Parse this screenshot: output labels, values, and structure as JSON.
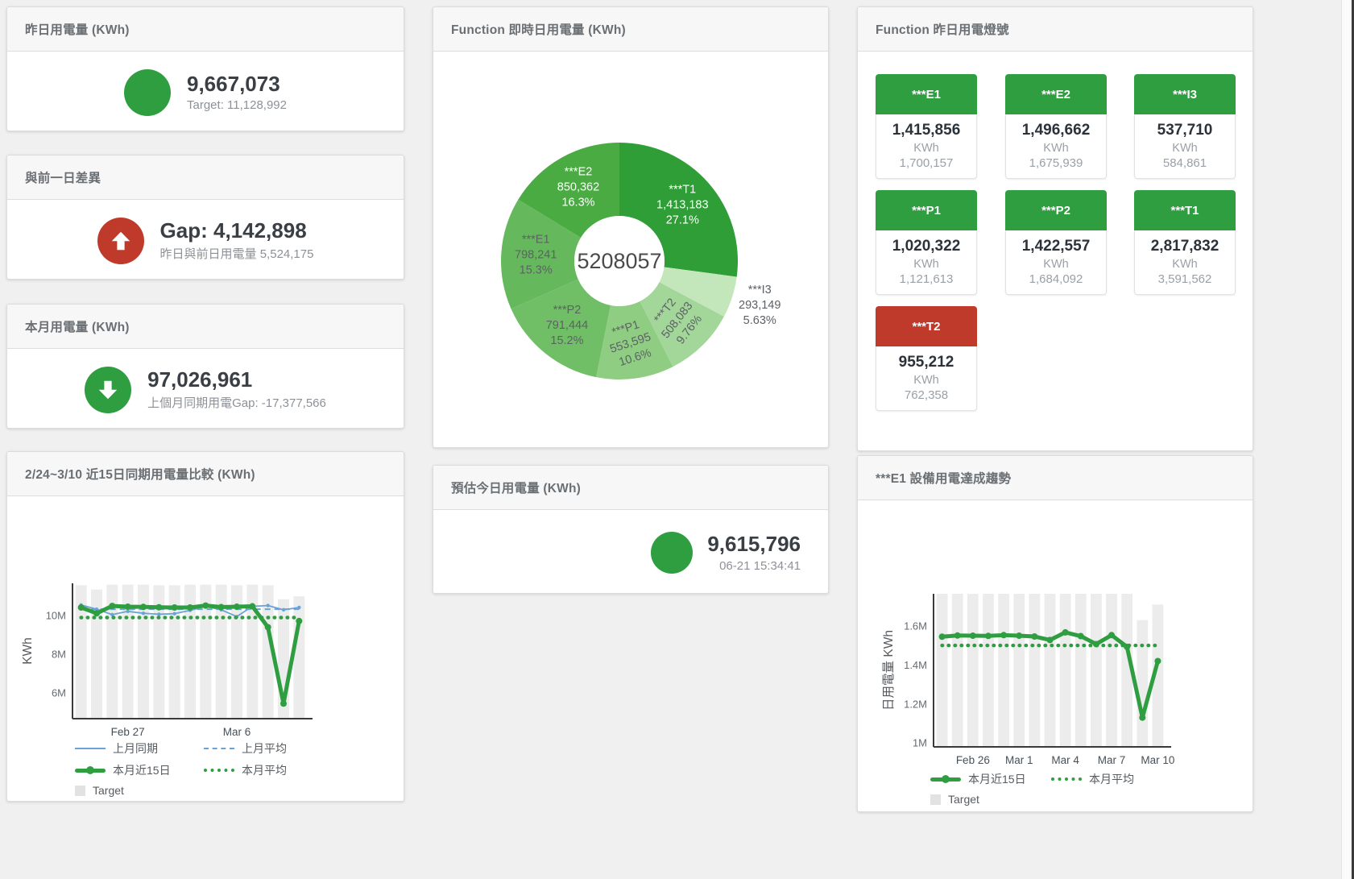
{
  "colors": {
    "green": "#2f9e41",
    "red": "#c03a2b",
    "blue": "#6ba3d6",
    "bar_gray": "#ececec",
    "target_swatch": "#e2e2e2"
  },
  "panels": {
    "yesterday": {
      "title": "昨日用電量 (KWh)",
      "value": "9,667,073",
      "subtitle": "Target: 11,128,992",
      "indicator": "circle",
      "indicator_color": "#2f9e41"
    },
    "day_gap": {
      "title": "與前一日差異",
      "value": "Gap: 4,142,898",
      "subtitle": "昨日與前日用電量 5,524,175",
      "indicator": "arrow-up",
      "indicator_color": "#c03a2b"
    },
    "month": {
      "title": "本月用電量 (KWh)",
      "value": "97,026,961",
      "subtitle": "上個月同期用電Gap: -17,377,566",
      "indicator": "arrow-down",
      "indicator_color": "#2f9e41"
    },
    "forecast": {
      "title": "預估今日用電量 (KWh)",
      "value": "9,615,796",
      "subtitle": "06-21 15:34:41",
      "indicator": "circle",
      "indicator_color": "#2f9e41"
    },
    "realtime_donut": {
      "title": "Function 即時日用電量 (KWh)"
    },
    "compare": {
      "title": "2/24~3/10 近15日同期用電量比較 (KWh)"
    },
    "lights": {
      "title": "Function 昨日用電燈號",
      "tiles": [
        {
          "name": "***E1",
          "value": "1,415,856",
          "unit": "KWh",
          "target": "1,700,157",
          "status_color": "#2f9e41"
        },
        {
          "name": "***E2",
          "value": "1,496,662",
          "unit": "KWh",
          "target": "1,675,939",
          "status_color": "#2f9e41"
        },
        {
          "name": "***I3",
          "value": "537,710",
          "unit": "KWh",
          "target": "584,861",
          "status_color": "#2f9e41"
        },
        {
          "name": "***P1",
          "value": "1,020,322",
          "unit": "KWh",
          "target": "1,121,613",
          "status_color": "#2f9e41"
        },
        {
          "name": "***P2",
          "value": "1,422,557",
          "unit": "KWh",
          "target": "1,684,092",
          "status_color": "#2f9e41"
        },
        {
          "name": "***T1",
          "value": "2,817,832",
          "unit": "KWh",
          "target": "3,591,562",
          "status_color": "#2f9e41"
        },
        {
          "name": "***T2",
          "value": "955,212",
          "unit": "KWh",
          "target": "762,358",
          "status_color": "#c03a2b"
        }
      ]
    },
    "e1_trend": {
      "title": "***E1 設備用電達成趨勢"
    }
  },
  "chart_data": [
    {
      "id": "realtime_donut",
      "type": "pie",
      "title": "Function 即時日用電量 (KWh)",
      "center_total": "5208057",
      "slices": [
        {
          "name": "***T1",
          "value": 1413183,
          "value_label": "1,413,183",
          "pct": 27.1,
          "pct_label": "27.1%",
          "color": "#2f9e36",
          "text_color": "#ffffff",
          "label": "inside",
          "label_rotate": 0
        },
        {
          "name": "***I3",
          "value": 293149,
          "value_label": "293,149",
          "pct": 5.63,
          "pct_label": "5.63%",
          "color": "#c4e6bb",
          "text_color": "#5d6166",
          "label": "outside",
          "label_rotate": 0
        },
        {
          "name": "***T2",
          "value": 508083,
          "value_label": "508,083",
          "pct": 9.76,
          "pct_label": "9.76%",
          "color": "#a3d699",
          "text_color": "#5d6166",
          "label": "inside",
          "label_rotate": -52
        },
        {
          "name": "***P1",
          "value": 553595,
          "value_label": "553,595",
          "pct": 10.6,
          "pct_label": "10.6%",
          "color": "#8ecd82",
          "text_color": "#5d6166",
          "label": "inside",
          "label_rotate": -18
        },
        {
          "name": "***P2",
          "value": 791444,
          "value_label": "791,444",
          "pct": 15.2,
          "pct_label": "15.2%",
          "color": "#70bf66",
          "text_color": "#5d6166",
          "label": "inside",
          "label_rotate": 0
        },
        {
          "name": "***E1",
          "value": 798241,
          "value_label": "798,241",
          "pct": 15.3,
          "pct_label": "15.3%",
          "color": "#65b95c",
          "text_color": "#5d6166",
          "label": "inside",
          "label_rotate": 0
        },
        {
          "name": "***E2",
          "value": 850362,
          "value_label": "850,362",
          "pct": 16.3,
          "pct_label": "16.3%",
          "color": "#4aab43",
          "text_color": "#ffffff",
          "label": "inside",
          "label_rotate": 0
        }
      ]
    },
    {
      "id": "compare",
      "type": "line",
      "title": "2/24~3/10 近15日同期用電量比較 (KWh)",
      "categories": [
        "Feb 24",
        "Feb 25",
        "Feb 26",
        "Feb 27",
        "Feb 28",
        "Mar 1",
        "Mar 2",
        "Mar 3",
        "Mar 4",
        "Mar 5",
        "Mar 6",
        "Mar 7",
        "Mar 8",
        "Mar 9",
        "Mar 10"
      ],
      "xlabel": "",
      "ylabel": "KWh",
      "ylim": [
        4.67,
        11.67
      ],
      "yticks": [
        {
          "v": 6,
          "label": "6M"
        },
        {
          "v": 8,
          "label": "8M"
        },
        {
          "v": 10,
          "label": "10M"
        }
      ],
      "xticks": [
        {
          "i": 3,
          "label": "Feb 27"
        },
        {
          "i": 10,
          "label": "Mar 6"
        }
      ],
      "grid": false,
      "legend_position": "bottom-left",
      "series": [
        {
          "name": "Target",
          "type": "bar",
          "color": "#ececec",
          "values": [
            11.57,
            11.35,
            11.6,
            11.6,
            11.6,
            11.57,
            11.57,
            11.6,
            11.6,
            11.6,
            11.57,
            11.6,
            11.57,
            10.85,
            11.0
          ]
        },
        {
          "name": "上月同期",
          "type": "line",
          "style": "solid",
          "width": 1.8,
          "marker": 2.2,
          "color": "#6ba3d6",
          "values": [
            10.55,
            10.33,
            10.05,
            10.22,
            10.12,
            10.07,
            10.1,
            10.27,
            10.48,
            10.3,
            9.95,
            10.48,
            10.52,
            10.3,
            10.42
          ]
        },
        {
          "name": "上月平均",
          "type": "line",
          "style": "dashed",
          "width": 2,
          "marker": 0,
          "color": "#6ba3d6",
          "values": [
            10.33,
            10.33,
            10.33,
            10.33,
            10.33,
            10.33,
            10.33,
            10.33,
            10.33,
            10.33,
            10.33,
            10.33,
            10.33,
            10.33,
            10.33
          ]
        },
        {
          "name": "本月平均",
          "type": "line",
          "style": "dotted",
          "width": 4.5,
          "marker": 0,
          "color": "#2f9e41",
          "values": [
            9.9,
            9.9,
            9.9,
            9.9,
            9.9,
            9.9,
            9.9,
            9.9,
            9.9,
            9.9,
            9.9,
            9.9,
            9.9,
            9.9,
            9.9
          ]
        },
        {
          "name": "本月近15日",
          "type": "line",
          "style": "solid",
          "width": 5,
          "marker": 4,
          "color": "#2f9e41",
          "values": [
            10.42,
            10.12,
            10.5,
            10.46,
            10.45,
            10.43,
            10.42,
            10.42,
            10.52,
            10.44,
            10.46,
            10.48,
            9.4,
            5.45,
            9.72
          ]
        }
      ],
      "legend": [
        {
          "label": "上月同期",
          "swatch": "blue-line"
        },
        {
          "label": "上月平均",
          "swatch": "blue-dash"
        },
        {
          "label": "本月近15日",
          "swatch": "green-thick"
        },
        {
          "label": "本月平均",
          "swatch": "green-dot"
        },
        {
          "label": "Target",
          "swatch": "target"
        }
      ]
    },
    {
      "id": "e1_trend",
      "type": "line",
      "title": "***E1 設備用電達成趨勢",
      "categories": [
        "Feb 24",
        "Feb 25",
        "Feb 26",
        "Feb 27",
        "Feb 28",
        "Mar 1",
        "Mar 2",
        "Mar 3",
        "Mar 4",
        "Mar 5",
        "Mar 6",
        "Mar 7",
        "Mar 8",
        "Mar 9",
        "Mar 10"
      ],
      "xlabel": "",
      "ylabel": "日用電量 KWh",
      "ylim": [
        0.98,
        1.765
      ],
      "yticks": [
        {
          "v": 1,
          "label": "1M"
        },
        {
          "v": 1.2,
          "label": "1.2M"
        },
        {
          "v": 1.4,
          "label": "1.4M"
        },
        {
          "v": 1.6,
          "label": "1.6M"
        }
      ],
      "xticks": [
        {
          "i": 2,
          "label": "Feb 26"
        },
        {
          "i": 5,
          "label": "Mar 1"
        },
        {
          "i": 8,
          "label": "Mar 4"
        },
        {
          "i": 11,
          "label": "Mar 7"
        },
        {
          "i": 14,
          "label": "Mar 10"
        }
      ],
      "grid": false,
      "legend_position": "bottom-left",
      "series": [
        {
          "name": "Target",
          "type": "bar",
          "color": "#ececec",
          "values": [
            1.765,
            1.765,
            1.765,
            1.765,
            1.765,
            1.765,
            1.765,
            1.765,
            1.765,
            1.765,
            1.765,
            1.765,
            1.765,
            1.63,
            1.71
          ]
        },
        {
          "name": "本月平均",
          "type": "line",
          "style": "dotted",
          "width": 4.5,
          "marker": 0,
          "color": "#2f9e41",
          "values": [
            1.5,
            1.5,
            1.5,
            1.5,
            1.5,
            1.5,
            1.5,
            1.5,
            1.5,
            1.5,
            1.5,
            1.5,
            1.5,
            1.5,
            1.5
          ]
        },
        {
          "name": "本月近15日",
          "type": "line",
          "style": "solid",
          "width": 5,
          "marker": 4,
          "color": "#2f9e41",
          "values": [
            1.545,
            1.551,
            1.55,
            1.549,
            1.553,
            1.55,
            1.546,
            1.528,
            1.567,
            1.548,
            1.507,
            1.553,
            1.493,
            1.13,
            1.42
          ]
        }
      ],
      "legend": [
        {
          "label": "本月近15日",
          "swatch": "green-thick"
        },
        {
          "label": "本月平均",
          "swatch": "green-dot"
        },
        {
          "label": "Target",
          "swatch": "target"
        }
      ]
    }
  ]
}
